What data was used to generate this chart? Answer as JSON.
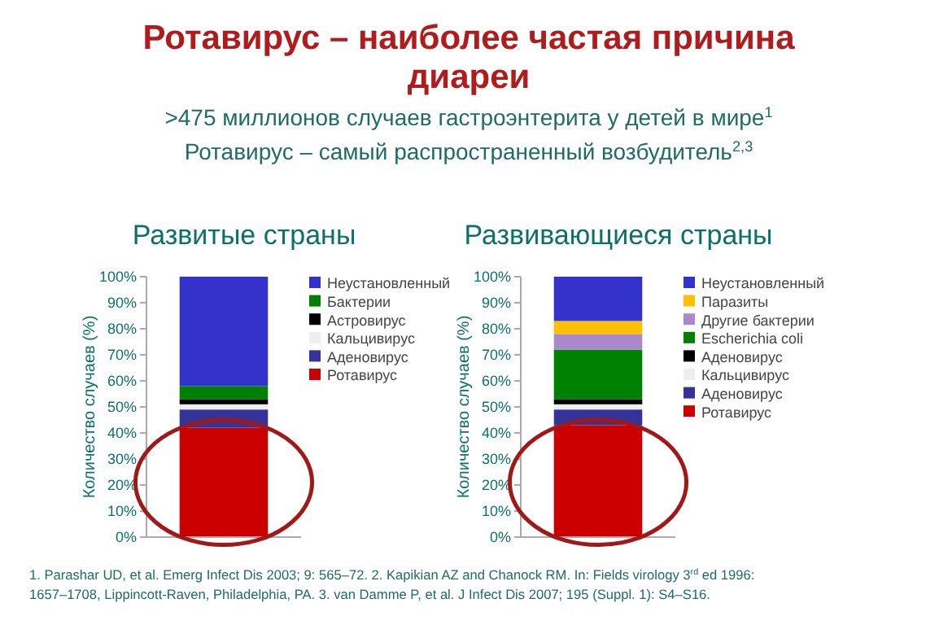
{
  "chart_data": [
    {
      "type": "other",
      "title": "Ротавирус – наиболее частая причина диареи",
      "subtitle": ">475 миллионов случаев гастроэнтерита у детей в мире$^{1}$\nРотавирус – самый  распространенный  возбудитель$^{2,3}$",
      "annotations": [
        "1. Parashar UD, et al. Emerg Infect Dis 2003; 9: 565–72. 2. Kapikian AZ and Chanock RM. In: Fields virology 3$^{rd}$ ed 1996:\n1657–1708, Lippincott-Raven, Philadelphia, PA. 3. van Damme P, et al. J Infect Dis 2007; 195 (Suppl. 1): S4–S16."
      ]
    },
    {
      "type": "bar",
      "title": "Развитые страны",
      "ylabel": "Количество случаев (%)",
      "stacked": true,
      "categories": [
        null
      ],
      "legend": "right",
      "ylim": [
        0,
        100
      ],
      "yticks": [
        {
          "value": 0,
          "label": "0%"
        },
        {
          "value": 10,
          "label": "10%"
        },
        {
          "value": 20,
          "label": "20%"
        },
        {
          "value": 30,
          "label": "30%"
        },
        {
          "value": 40,
          "label": "40%"
        },
        {
          "value": 50,
          "label": "50%"
        },
        {
          "value": 60,
          "label": "60%"
        },
        {
          "value": 70,
          "label": "70%"
        },
        {
          "value": 80,
          "label": "80%"
        },
        {
          "value": 90,
          "label": "90%"
        },
        {
          "value": 100,
          "label": "100%"
        }
      ],
      "series": [
        {
          "name": "Ротавирус",
          "color": "#cc0000",
          "values": [
            42
          ]
        },
        {
          "name": "Аденовирус",
          "color": "#333399",
          "values": [
            7
          ]
        },
        {
          "name": "Кальцивирус",
          "color": "#eeeeee",
          "values": [
            2
          ]
        },
        {
          "name": "Астровирус",
          "color": "#000000",
          "values": [
            2
          ]
        },
        {
          "name": "Бактерии",
          "color": "#008000",
          "values": [
            5
          ]
        },
        {
          "name": "Неустановленный",
          "color": "#3333cc",
          "values": [
            42
          ]
        }
      ]
    },
    {
      "type": "bar",
      "title": "Развивающиеся страны",
      "ylabel": "Количество случаев (%)",
      "stacked": true,
      "categories": [
        null
      ],
      "legend": "right",
      "ylim": [
        0,
        100
      ],
      "yticks": [
        {
          "value": 0,
          "label": "0%"
        },
        {
          "value": 10,
          "label": "10%"
        },
        {
          "value": 20,
          "label": "20%"
        },
        {
          "value": 30,
          "label": "30%"
        },
        {
          "value": 40,
          "label": "40%"
        },
        {
          "value": 50,
          "label": "50%"
        },
        {
          "value": 60,
          "label": "60%"
        },
        {
          "value": 70,
          "label": "70%"
        },
        {
          "value": 80,
          "label": "80%"
        },
        {
          "value": 90,
          "label": "90%"
        },
        {
          "value": 100,
          "label": "100%"
        }
      ],
      "series": [
        {
          "name": "Ротавирус",
          "color": "#cc0000",
          "values": [
            43
          ]
        },
        {
          "name": "Аденовирус",
          "color": "#333399",
          "values": [
            6
          ]
        },
        {
          "name": "Кальцивирус",
          "color": "#eeeeee",
          "values": [
            2
          ]
        },
        {
          "name": "Аденовирус",
          "color": "#000000",
          "values": [
            2
          ]
        },
        {
          "name": "Escherichia coli",
          "color": "#008000",
          "values": [
            19
          ]
        },
        {
          "name": "Другие бактерии",
          "color": "#aa88cc",
          "values": [
            6
          ]
        },
        {
          "name": "Паразиты",
          "color": "#ffc000",
          "values": [
            5
          ]
        },
        {
          "name": "Неустановленный",
          "color": "#3333cc",
          "values": [
            17
          ]
        }
      ]
    }
  ]
}
